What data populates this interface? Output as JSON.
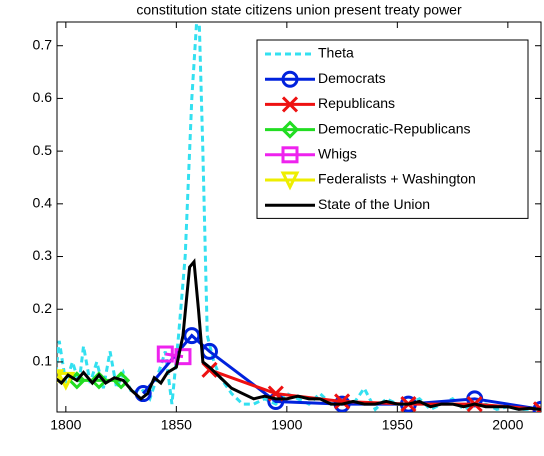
{
  "chart_data": {
    "type": "line",
    "title": "constitution state citizens union present treaty power",
    "xlim": [
      1796,
      2015
    ],
    "ylim": [
      0.005,
      0.745
    ],
    "xticks": [
      1800,
      1850,
      1900,
      1950,
      2000
    ],
    "yticks": [
      0.1,
      0.2,
      0.3,
      0.4,
      0.5,
      0.6,
      0.7
    ],
    "legend": "upper right",
    "series": [
      {
        "name": "Theta",
        "color": "#33e0f0",
        "style": "dashed",
        "marker": null,
        "x": [
          1795,
          1797,
          1800,
          1803,
          1806,
          1808,
          1811,
          1814,
          1817,
          1820,
          1823,
          1826,
          1830,
          1834,
          1838,
          1842,
          1845,
          1848,
          1851,
          1854,
          1857,
          1860,
          1862,
          1864,
          1867,
          1870,
          1875,
          1880,
          1885,
          1890,
          1895,
          1900,
          1905,
          1910,
          1915,
          1920,
          1925,
          1930,
          1935,
          1940,
          1945,
          1950,
          1955,
          1960,
          1965,
          1970,
          1975,
          1980,
          1985,
          1990,
          1995,
          2000,
          2005,
          2010,
          2015
        ],
        "values": [
          0.06,
          0.14,
          0.06,
          0.1,
          0.06,
          0.13,
          0.06,
          0.1,
          0.05,
          0.12,
          0.05,
          0.08,
          0.04,
          0.05,
          0.03,
          0.08,
          0.12,
          0.02,
          0.15,
          0.3,
          0.6,
          0.8,
          0.5,
          0.15,
          0.1,
          0.07,
          0.04,
          0.02,
          0.02,
          0.03,
          0.02,
          0.04,
          0.03,
          0.02,
          0.04,
          0.02,
          0.03,
          0.02,
          0.05,
          0.01,
          0.03,
          0.02,
          0.02,
          0.03,
          0.01,
          0.02,
          0.03,
          0.01,
          0.02,
          0.02,
          0.01,
          0.015,
          0.01,
          0.01,
          0.01
        ]
      },
      {
        "name": "Democrats",
        "color": "#0022dd",
        "style": "solid",
        "marker": "o",
        "x": [
          1835,
          1857,
          1865,
          1895,
          1925,
          1955,
          1985,
          2015
        ],
        "values": [
          0.04,
          0.15,
          0.12,
          0.025,
          0.02,
          0.02,
          0.03,
          0.01
        ]
      },
      {
        "name": "Republicans",
        "color": "#ee1111",
        "style": "solid",
        "marker": "x",
        "x": [
          1865,
          1895,
          1925,
          1955,
          1985,
          2015
        ],
        "values": [
          0.085,
          0.04,
          0.025,
          0.02,
          0.02,
          0.01
        ]
      },
      {
        "name": "Democratic-Republicans",
        "color": "#22dd22",
        "style": "solid",
        "marker": "d",
        "x": [
          1805,
          1815,
          1825
        ],
        "values": [
          0.065,
          0.065,
          0.065
        ]
      },
      {
        "name": "Whigs",
        "color": "#ee22ee",
        "style": "solid",
        "marker": "s",
        "x": [
          1845,
          1853
        ],
        "values": [
          0.115,
          0.11
        ]
      },
      {
        "name": "Federalists + Washington",
        "color": "#eeee00",
        "style": "solid",
        "marker": "v",
        "x": [
          1795,
          1800
        ],
        "values": [
          0.07,
          0.065
        ]
      },
      {
        "name": "State of the Union",
        "color": "#000000",
        "style": "solid",
        "marker": null,
        "x": [
          1795,
          1798,
          1801,
          1805,
          1808,
          1812,
          1815,
          1818,
          1822,
          1826,
          1830,
          1834,
          1837,
          1840,
          1843,
          1846,
          1850,
          1853,
          1856,
          1858,
          1860,
          1862,
          1865,
          1870,
          1875,
          1880,
          1885,
          1890,
          1895,
          1900,
          1905,
          1910,
          1915,
          1920,
          1925,
          1930,
          1935,
          1940,
          1945,
          1950,
          1955,
          1960,
          1965,
          1970,
          1975,
          1980,
          1985,
          1990,
          1995,
          2000,
          2005,
          2010,
          2015
        ],
        "values": [
          0.07,
          0.06,
          0.075,
          0.065,
          0.08,
          0.06,
          0.075,
          0.06,
          0.07,
          0.065,
          0.045,
          0.03,
          0.04,
          0.07,
          0.06,
          0.08,
          0.09,
          0.15,
          0.28,
          0.29,
          0.2,
          0.1,
          0.09,
          0.07,
          0.05,
          0.04,
          0.03,
          0.035,
          0.03,
          0.03,
          0.035,
          0.03,
          0.03,
          0.02,
          0.02,
          0.025,
          0.02,
          0.02,
          0.025,
          0.02,
          0.02,
          0.025,
          0.015,
          0.02,
          0.02,
          0.015,
          0.02,
          0.015,
          0.015,
          0.015,
          0.01,
          0.012,
          0.01
        ]
      }
    ]
  }
}
